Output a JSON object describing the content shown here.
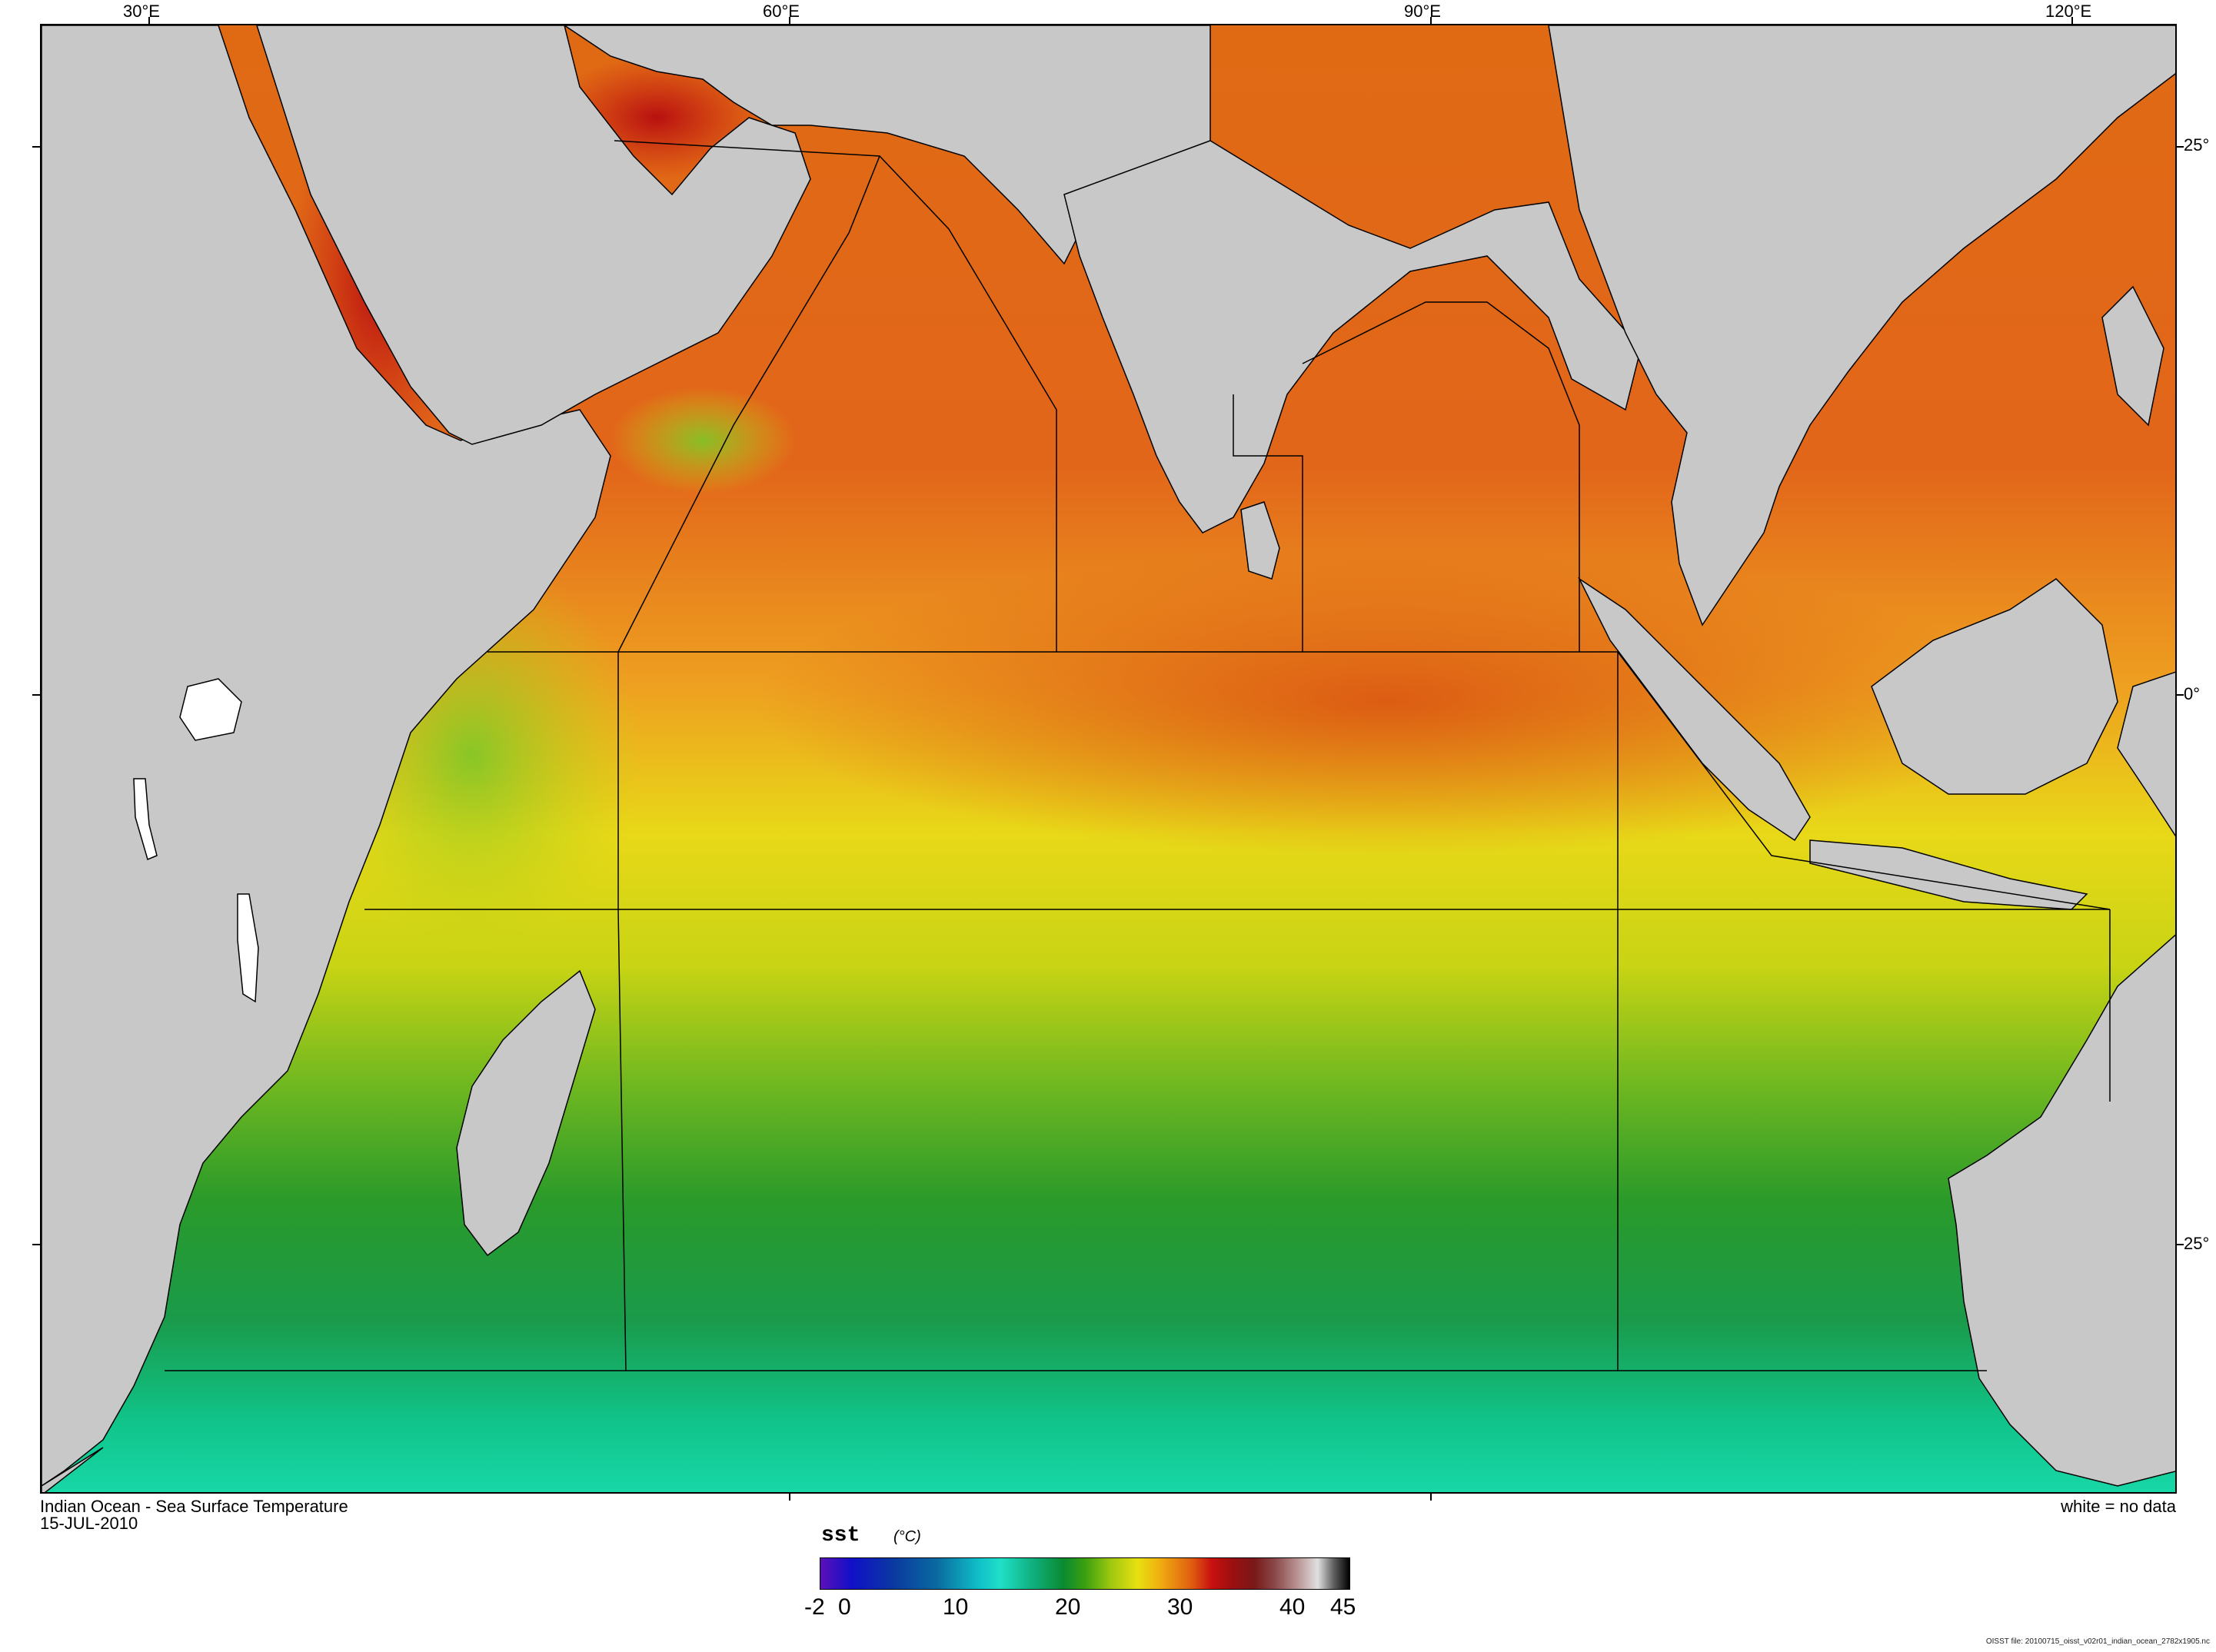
{
  "map": {
    "title": "Indian Ocean - Sea Surface Temperature",
    "date": "15-JUL-2010",
    "no_data_note": "white = no data",
    "land_color": "#c8c8c8",
    "lon_labels": [
      "30°E",
      "60°E",
      "90°E",
      "120°E"
    ],
    "lat_labels": [
      "25°",
      "0°",
      "25°"
    ]
  },
  "colorbar": {
    "variable": "sst",
    "units": "(°C)",
    "tick_labels": [
      "-2",
      "0",
      "10",
      "20",
      "30",
      "40",
      "45"
    ],
    "min": -2,
    "max": 45
  },
  "footer": {
    "file_note": "OISST file: 20100715_oisst_v02r01_indian_ocean_2782x1905.nc"
  }
}
